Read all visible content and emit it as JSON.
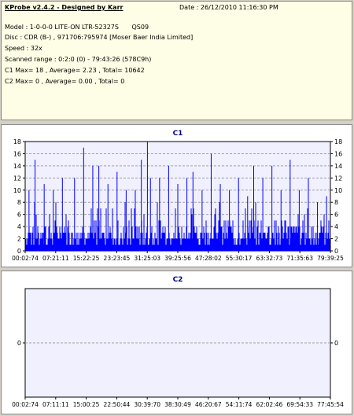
{
  "info": {
    "title": "KProbe v2.4.2 - Designed by Karr",
    "date": "Date : 26/12/2010 11:16:30 PM",
    "model": "Model : 1-0-0-0 LITE-ON LTR-52327S",
    "model_fw": "QS09",
    "disc": "Disc : CDR (B-) , 971706:795974 [Moser Baer India Limited]",
    "speed": "Speed : 32x",
    "range": "Scanned range : 0:2:0 (0) - 79:43:26 (578C9h)",
    "c1": "C1 Max= 18 , Average= 2.23 , Total= 10642",
    "c2": "C2 Max= 0 , Average= 0.00 , Total= 0"
  },
  "colors": {
    "bar": "#0000ff",
    "plot_bg": "#f0f0ff",
    "title": "#000080",
    "grid": "#a0a0a0"
  },
  "chart_data": [
    {
      "type": "bar",
      "title": "C1",
      "ylim": [
        0,
        18
      ],
      "yticks": [
        0,
        2,
        4,
        6,
        8,
        10,
        12,
        14,
        16,
        18
      ],
      "x_ticklabels": [
        "00:02:74",
        "07:21:11",
        "15:22:25",
        "23:23:45",
        "31:25:03",
        "39:25:56",
        "47:28:02",
        "55:30:17",
        "63:32:73",
        "71:35:63",
        "79:39:25"
      ],
      "max": 18,
      "average": 2.23,
      "peaks": [
        {
          "x": 0.01,
          "v": 10
        },
        {
          "x": 0.03,
          "v": 15
        },
        {
          "x": 0.06,
          "v": 11
        },
        {
          "x": 0.09,
          "v": 10
        },
        {
          "x": 0.12,
          "v": 12
        },
        {
          "x": 0.16,
          "v": 12
        },
        {
          "x": 0.19,
          "v": 17
        },
        {
          "x": 0.22,
          "v": 14
        },
        {
          "x": 0.24,
          "v": 14
        },
        {
          "x": 0.27,
          "v": 11
        },
        {
          "x": 0.3,
          "v": 13
        },
        {
          "x": 0.33,
          "v": 10
        },
        {
          "x": 0.36,
          "v": 10
        },
        {
          "x": 0.38,
          "v": 15
        },
        {
          "x": 0.4,
          "v": 18
        },
        {
          "x": 0.41,
          "v": 12
        },
        {
          "x": 0.44,
          "v": 12
        },
        {
          "x": 0.47,
          "v": 14
        },
        {
          "x": 0.5,
          "v": 11
        },
        {
          "x": 0.53,
          "v": 12
        },
        {
          "x": 0.55,
          "v": 13
        },
        {
          "x": 0.58,
          "v": 10
        },
        {
          "x": 0.61,
          "v": 16
        },
        {
          "x": 0.64,
          "v": 11
        },
        {
          "x": 0.67,
          "v": 10
        },
        {
          "x": 0.7,
          "v": 12
        },
        {
          "x": 0.73,
          "v": 9
        },
        {
          "x": 0.75,
          "v": 14
        },
        {
          "x": 0.78,
          "v": 12
        },
        {
          "x": 0.81,
          "v": 14
        },
        {
          "x": 0.84,
          "v": 10
        },
        {
          "x": 0.87,
          "v": 15
        },
        {
          "x": 0.9,
          "v": 10
        },
        {
          "x": 0.93,
          "v": 12
        },
        {
          "x": 0.96,
          "v": 8
        },
        {
          "x": 0.99,
          "v": 9
        }
      ]
    },
    {
      "type": "bar",
      "title": "C2",
      "ylim": [
        -1,
        1
      ],
      "yticks": [
        0
      ],
      "x_ticklabels": [
        "00:02:74",
        "07:11:11",
        "15:00:25",
        "22:50:44",
        "30:39:70",
        "38:30:49",
        "46:20:67",
        "54:11:74",
        "62:02:46",
        "69:54:33",
        "77:45:54"
      ],
      "max": 0,
      "average": 0,
      "values": []
    }
  ]
}
